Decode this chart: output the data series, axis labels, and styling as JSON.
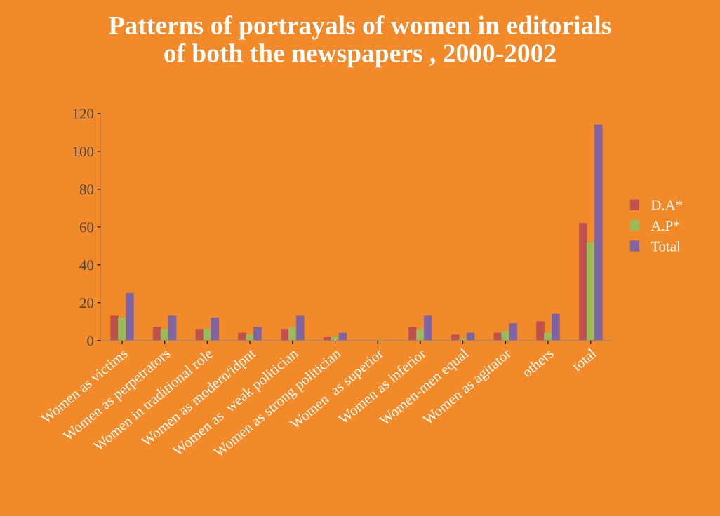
{
  "chart_data": {
    "type": "bar",
    "title": "Patterns of portrayals of women in editorials\nof both the newspapers , 2000-2002",
    "categories": [
      "Women as victims",
      "Women as perpetrators",
      "Women in traditional role",
      "Women as modern/idpnt",
      "Women as  weak politician",
      "Women as strong politician",
      "Women  as superior",
      "Women as inferior",
      "Women-men equal",
      "Women as agitator",
      "others",
      "total"
    ],
    "series": [
      {
        "name": "D.A*",
        "color": "#c0504d",
        "values": [
          13,
          7,
          6,
          4,
          6,
          2,
          0,
          7,
          3,
          4,
          10,
          62
        ]
      },
      {
        "name": "A.P*",
        "color": "#9bbb59",
        "values": [
          12,
          6,
          6,
          3,
          7,
          2,
          0,
          6,
          1,
          5,
          4,
          52
        ]
      },
      {
        "name": "Total",
        "color": "#8064a2",
        "values": [
          25,
          13,
          12,
          7,
          13,
          4,
          0,
          13,
          4,
          9,
          14,
          114
        ]
      }
    ],
    "ylim": [
      0,
      120
    ],
    "yticks": [
      0,
      20,
      40,
      60,
      80,
      100,
      120
    ],
    "grid": false,
    "legend": "right"
  }
}
